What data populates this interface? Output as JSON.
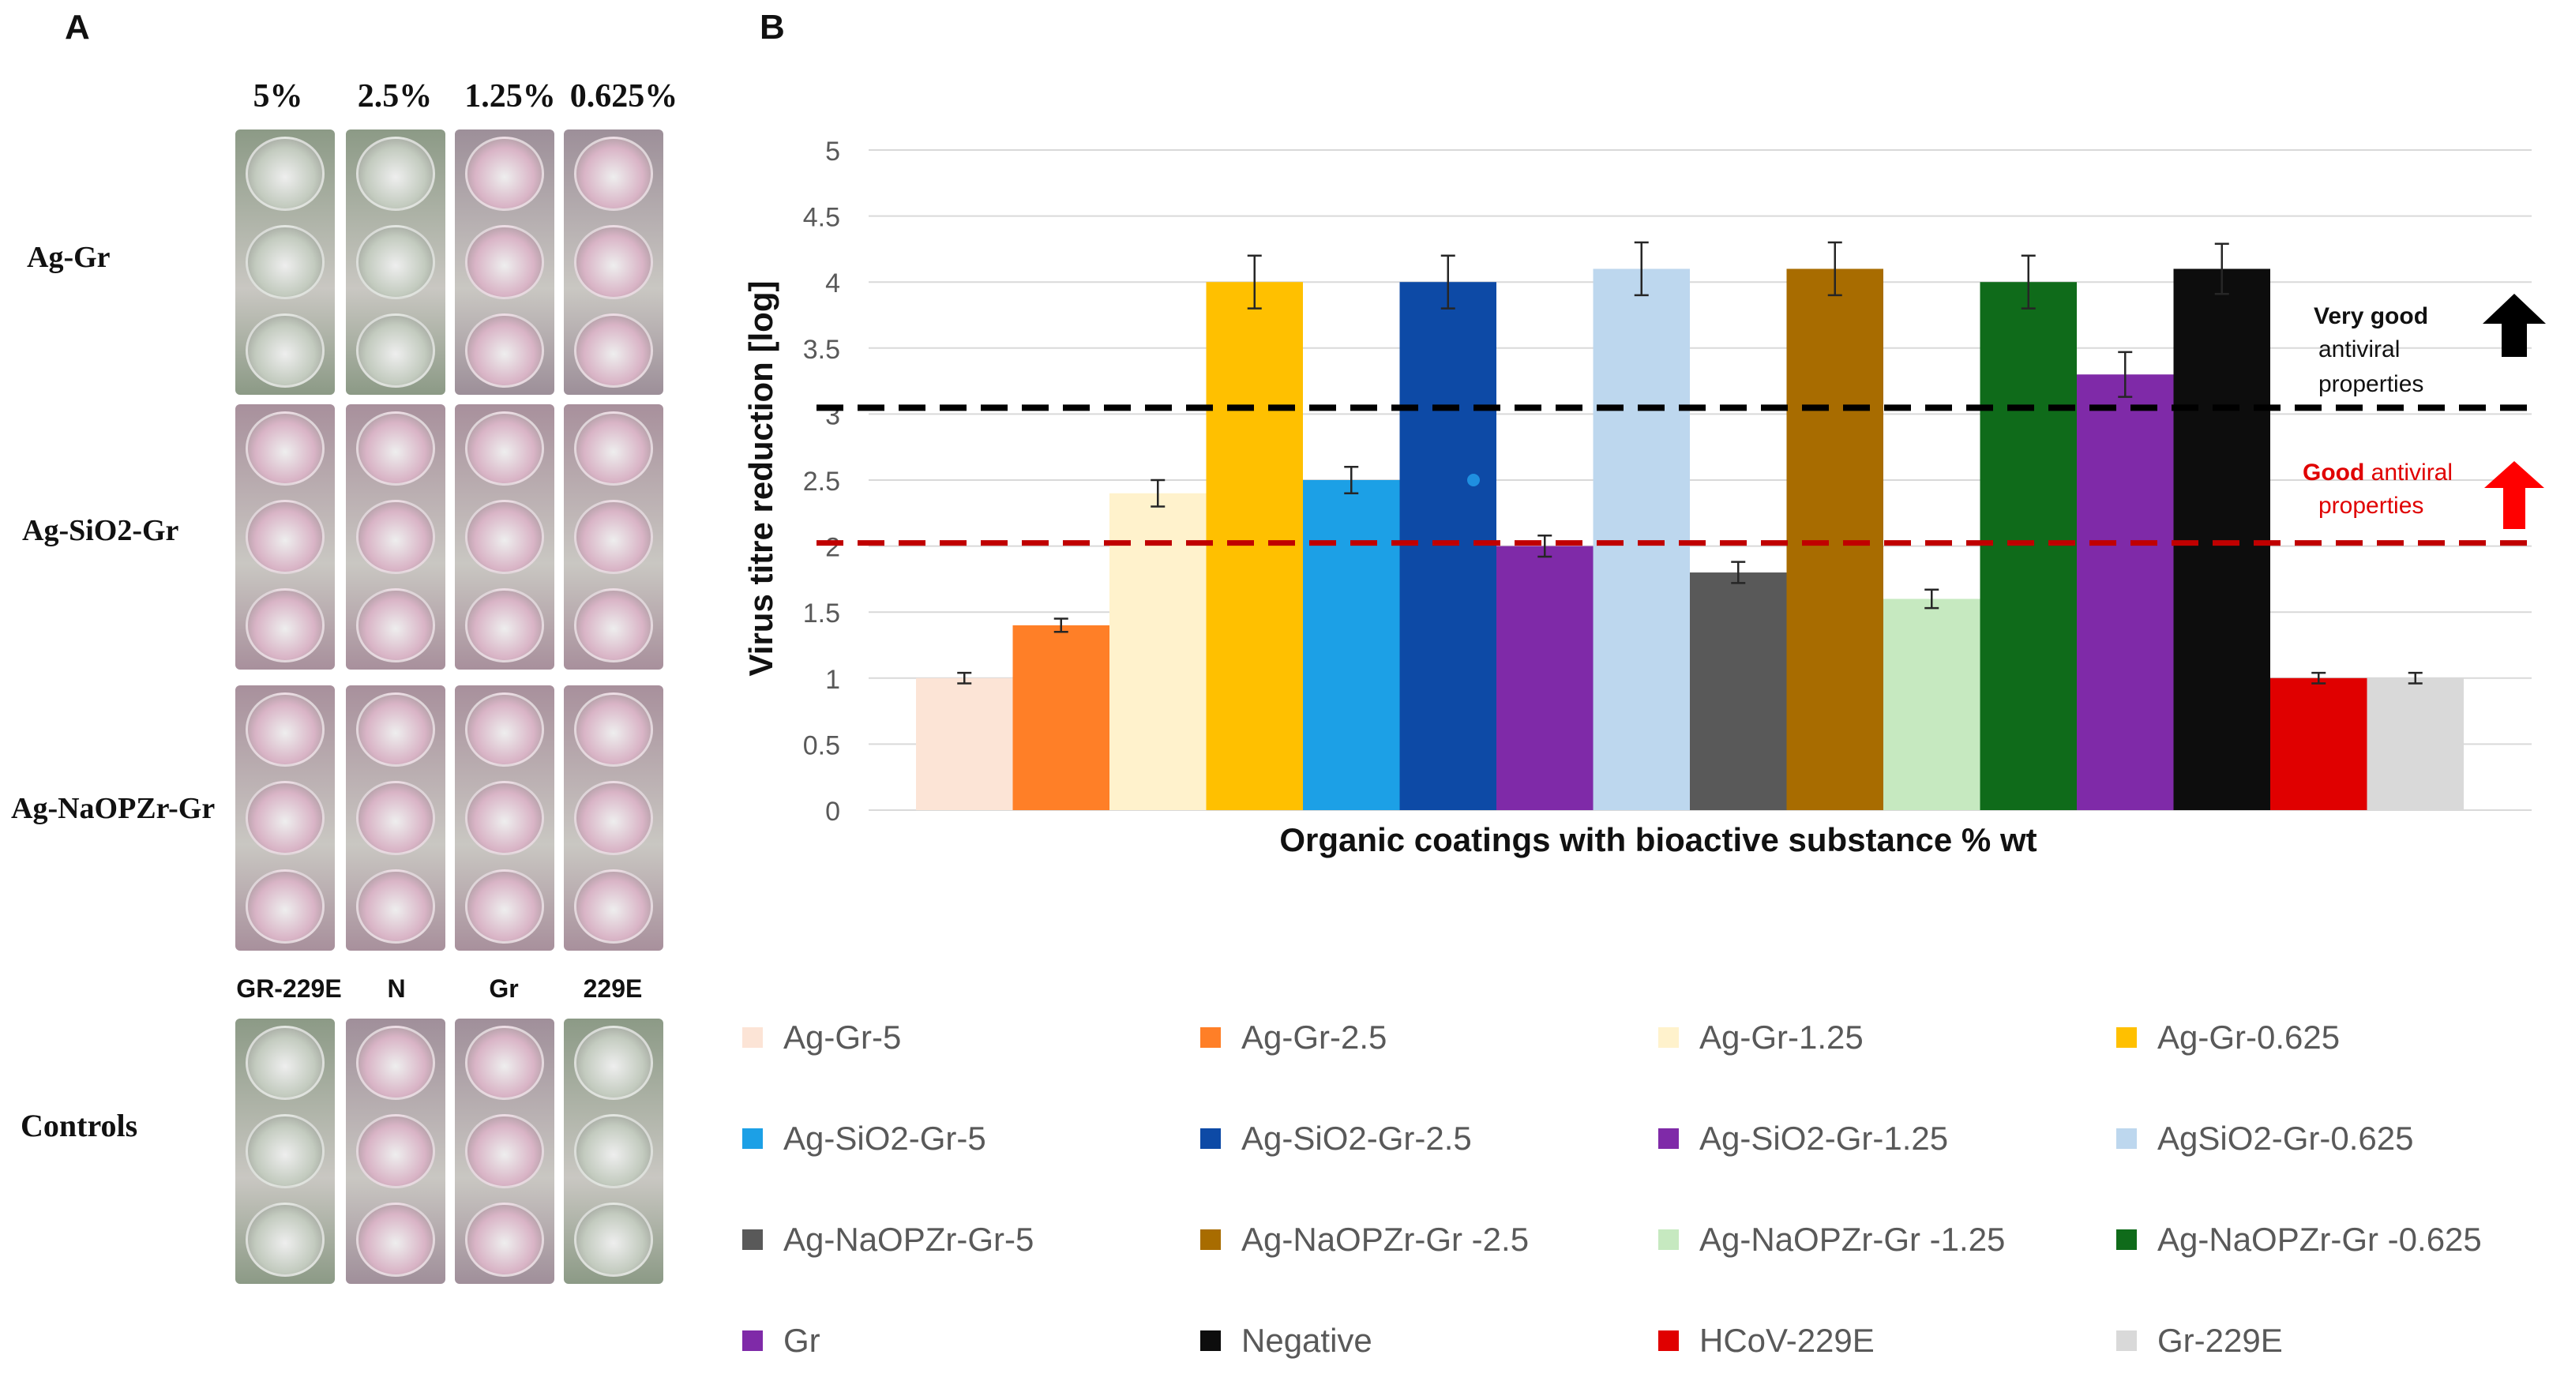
{
  "panel_a": {
    "letter": "A",
    "concentrations": [
      "5%",
      "2.5%",
      "1.25%",
      "0.625%"
    ],
    "rows": [
      "Ag-Gr",
      "Ag-SiO2-Gr",
      "Ag-NaOPZr-Gr"
    ],
    "control_labels": [
      "GR-229E",
      "N",
      "Gr",
      "229E"
    ],
    "controls_label": "Controls"
  },
  "panel_b": {
    "letter": "B"
  },
  "chart_data": {
    "type": "bar",
    "title": "",
    "xlabel": "Organic coatings with bioactive substance % wt",
    "ylabel": "Virus titre reduction [log]",
    "ylim": [
      0,
      5
    ],
    "yticks": [
      "0",
      "0.5",
      "1",
      "1.5",
      "2",
      "2.5",
      "3",
      "3.5",
      "4",
      "4.5",
      "5"
    ],
    "grid": true,
    "categories": [
      "Ag-Gr-5",
      "Ag-Gr-2.5",
      "Ag-Gr-1.25",
      "Ag-Gr-0.625",
      "Ag-SiO2-Gr-5",
      "Ag-SiO2-Gr-2.5",
      "Ag-SiO2-Gr-1.25",
      "AgSiO2-Gr-0.625",
      "Ag-NaOPZr-Gr-5",
      "Ag-NaOPZr-Gr -2.5",
      "Ag-NaOPZr-Gr -1.25",
      "Ag-NaOPZr-Gr -0.625",
      "Gr",
      "Negative",
      "HCoV-229E",
      "Gr-229E"
    ],
    "values": [
      1.0,
      1.4,
      2.4,
      4.0,
      2.5,
      4.0,
      2.0,
      4.1,
      1.8,
      4.1,
      1.6,
      4.0,
      3.3,
      4.1,
      1.0,
      1.0
    ],
    "errors": [
      0.04,
      0.05,
      0.1,
      0.2,
      0.1,
      0.2,
      0.08,
      0.2,
      0.08,
      0.2,
      0.07,
      0.2,
      0.17,
      0.19,
      0.04,
      0.04
    ],
    "colors": [
      "#fce4d6",
      "#ff7f27",
      "#fff2cc",
      "#ffc000",
      "#1ca0e6",
      "#0d4aa6",
      "#7f2aa8",
      "#bdd7ee",
      "#595959",
      "#a86c00",
      "#c6e9c0",
      "#0f6b1a",
      "#7f2aa8",
      "#0d0d0d",
      "#e00000",
      "#d9d9d9"
    ],
    "thresholds": [
      {
        "value": 3.0,
        "color": "#000000",
        "label_bold": "Very good",
        "label_rest": [
          "antiviral",
          "properties"
        ]
      },
      {
        "value": 2.0,
        "color": "#c00000",
        "label_bold": "Good",
        "label_rest": [
          "antiviral",
          "properties"
        ]
      }
    ],
    "legend": {
      "position": "bottom",
      "columns": 4
    }
  }
}
